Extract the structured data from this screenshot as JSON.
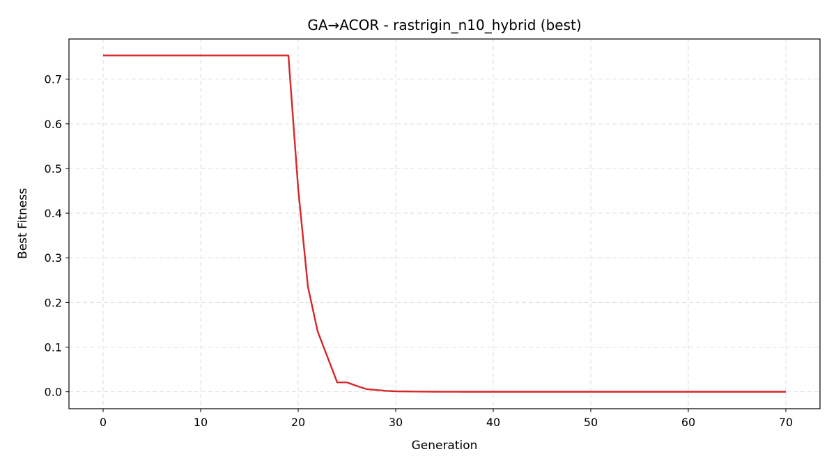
{
  "chart_data": {
    "type": "line",
    "title": "GA→ACOR - rastrigin_n10_hybrid (best)",
    "xlabel": "Generation",
    "ylabel": "Best Fitness",
    "xlim": [
      -3.5,
      73.5
    ],
    "ylim": [
      -0.038,
      0.79
    ],
    "xticks": [
      0,
      10,
      20,
      30,
      40,
      50,
      60,
      70
    ],
    "yticks": [
      0.0,
      0.1,
      0.2,
      0.3,
      0.4,
      0.5,
      0.6,
      0.7
    ],
    "grid": true,
    "series": [
      {
        "color": "#d62728",
        "x": [
          0,
          1,
          2,
          3,
          4,
          5,
          6,
          7,
          8,
          9,
          10,
          11,
          12,
          13,
          14,
          15,
          16,
          17,
          18,
          19,
          20,
          21,
          22,
          23,
          24,
          25,
          26,
          27,
          28,
          29,
          30,
          31,
          32,
          33,
          34,
          35,
          36,
          37,
          38,
          39,
          40,
          41,
          42,
          43,
          44,
          45,
          46,
          47,
          48,
          49,
          50,
          51,
          52,
          53,
          54,
          55,
          56,
          57,
          58,
          59,
          60,
          61,
          62,
          63,
          64,
          65,
          66,
          67,
          68,
          69,
          70
        ],
        "y": [
          0.753,
          0.753,
          0.753,
          0.753,
          0.753,
          0.753,
          0.753,
          0.753,
          0.753,
          0.753,
          0.753,
          0.753,
          0.753,
          0.753,
          0.753,
          0.753,
          0.753,
          0.753,
          0.753,
          0.753,
          0.455,
          0.235,
          0.135,
          0.078,
          0.021,
          0.021,
          0.013,
          0.006,
          0.004,
          0.002,
          0.001,
          0.0008,
          0.0005,
          0.0003,
          0.0002,
          0.0001,
          0.0001,
          0,
          0,
          0,
          0,
          0,
          0,
          0,
          0,
          0,
          0,
          0,
          0,
          0,
          0,
          0,
          0,
          0,
          0,
          0,
          0,
          0,
          0,
          0,
          0,
          0,
          0,
          0,
          0,
          0,
          0,
          0,
          0,
          0,
          0
        ]
      }
    ]
  }
}
